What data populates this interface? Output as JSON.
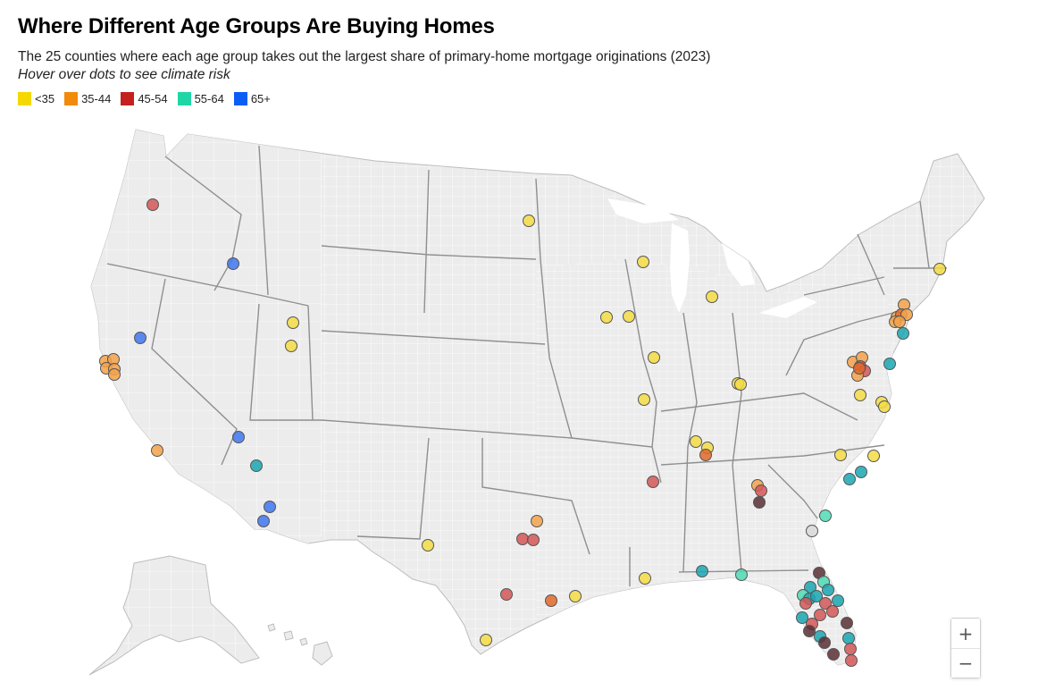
{
  "title": "Where Different Age Groups Are Buying Homes",
  "subtitle": "The 25 counties where each age group takes out the largest share of primary-home mortgage originations (2023)",
  "note": "Hover over dots to see climate risk",
  "legend": [
    {
      "label": "<35",
      "color": "#f5d800"
    },
    {
      "label": "35-44",
      "color": "#f28a0a"
    },
    {
      "label": "45-54",
      "color": "#c42020"
    },
    {
      "label": "55-64",
      "color": "#1fd6a6"
    },
    {
      "label": "65+",
      "color": "#0a5ef5"
    }
  ],
  "dot_colors": {
    "<35": "#f5dc45",
    "35-44": "#f4a24a",
    "45-54": "#d35757",
    "55-64": "#4fdab5",
    "65+": "#3f77ee",
    "teal": "#1aa7b3",
    "dark": "#5b2f35",
    "orange-dark": "#e06a2a",
    "grey": "#d9d9d9"
  },
  "map_colors": {
    "land": "#ececec",
    "county_line": "#ffffff",
    "state_line": "#8f8f8f"
  },
  "zoom": {
    "in_label": "+",
    "out_label": "−"
  }
}
